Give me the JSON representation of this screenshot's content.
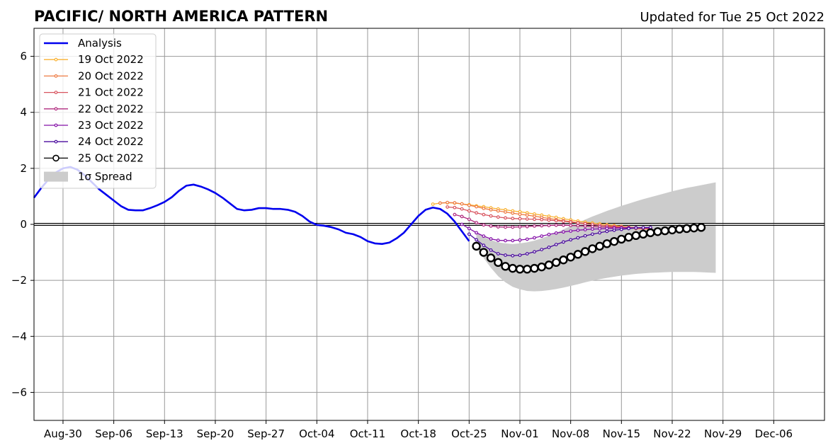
{
  "chart_data": {
    "type": "line",
    "title": "PACIFIC/ NORTH AMERICA PATTERN",
    "subtitle": "Updated for Tue 25 Oct 2022",
    "x_ticks": [
      "Aug-30",
      "Sep-06",
      "Sep-13",
      "Sep-20",
      "Sep-27",
      "Oct-04",
      "Oct-11",
      "Oct-18",
      "Oct-25",
      "Nov-01",
      "Nov-08",
      "Nov-15",
      "Nov-22",
      "Nov-29",
      "Dec-06"
    ],
    "y_ticks": [
      "−6",
      "−4",
      "−2",
      "0",
      "2",
      "4",
      "6"
    ],
    "x_range": [
      "2022-08-26",
      "2022-12-13"
    ],
    "ylim": [
      -7,
      7
    ],
    "grid": true,
    "legend_position": "top-left",
    "analysis": {
      "name": "Analysis",
      "color": "#0000ee",
      "x": [
        "2022-08-26",
        "2022-08-27",
        "2022-08-28",
        "2022-08-29",
        "2022-08-30",
        "2022-08-31",
        "2022-09-01",
        "2022-09-02",
        "2022-09-03",
        "2022-09-04",
        "2022-09-05",
        "2022-09-06",
        "2022-09-07",
        "2022-09-08",
        "2022-09-09",
        "2022-09-10",
        "2022-09-11",
        "2022-09-12",
        "2022-09-13",
        "2022-09-14",
        "2022-09-15",
        "2022-09-16",
        "2022-09-17",
        "2022-09-18",
        "2022-09-19",
        "2022-09-20",
        "2022-09-21",
        "2022-09-22",
        "2022-09-23",
        "2022-09-24",
        "2022-09-25",
        "2022-09-26",
        "2022-09-27",
        "2022-09-28",
        "2022-09-29",
        "2022-09-30",
        "2022-10-01",
        "2022-10-02",
        "2022-10-03",
        "2022-10-04",
        "2022-10-05",
        "2022-10-06",
        "2022-10-07",
        "2022-10-08",
        "2022-10-09",
        "2022-10-10",
        "2022-10-11",
        "2022-10-12",
        "2022-10-13",
        "2022-10-14",
        "2022-10-15",
        "2022-10-16",
        "2022-10-17",
        "2022-10-18",
        "2022-10-19",
        "2022-10-20",
        "2022-10-21",
        "2022-10-22",
        "2022-10-23",
        "2022-10-24",
        "2022-10-25"
      ],
      "y": [
        0.95,
        1.3,
        1.6,
        1.85,
        2.0,
        2.05,
        1.95,
        1.75,
        1.5,
        1.25,
        1.05,
        0.85,
        0.65,
        0.52,
        0.5,
        0.5,
        0.58,
        0.68,
        0.8,
        0.97,
        1.2,
        1.38,
        1.42,
        1.35,
        1.25,
        1.12,
        0.95,
        0.75,
        0.55,
        0.5,
        0.52,
        0.58,
        0.58,
        0.55,
        0.55,
        0.52,
        0.45,
        0.3,
        0.1,
        -0.02,
        -0.05,
        -0.1,
        -0.18,
        -0.3,
        -0.35,
        -0.45,
        -0.6,
        -0.68,
        -0.7,
        -0.65,
        -0.5,
        -0.3,
        0.0,
        0.3,
        0.52,
        0.6,
        0.55,
        0.38,
        0.1,
        -0.25,
        -0.6
      ]
    },
    "forecasts": [
      {
        "name": "19 Oct 2022",
        "color": "#f9b233",
        "x0": "2022-10-20",
        "y": [
          0.72,
          0.76,
          0.77,
          0.76,
          0.73,
          0.7,
          0.66,
          0.63,
          0.59,
          0.55,
          0.52,
          0.48,
          0.45,
          0.41,
          0.37,
          0.33,
          0.29,
          0.25,
          0.2,
          0.16,
          0.12,
          0.08,
          0.05,
          0.02,
          -0.01,
          -0.04,
          -0.07,
          -0.1,
          -0.12,
          -0.14,
          -0.15
        ]
      },
      {
        "name": "20 Oct 2022",
        "color": "#ee7b43",
        "x0": "2022-10-21",
        "y": [
          0.76,
          0.78,
          0.77,
          0.73,
          0.68,
          0.63,
          0.57,
          0.52,
          0.48,
          0.44,
          0.4,
          0.36,
          0.33,
          0.29,
          0.25,
          0.21,
          0.17,
          0.13,
          0.1,
          0.06,
          0.03,
          0.0,
          -0.03,
          -0.06,
          -0.09,
          -0.11,
          -0.13,
          -0.15,
          -0.16,
          -0.17
        ]
      },
      {
        "name": "21 Oct 2022",
        "color": "#d8535e",
        "x0": "2022-10-22",
        "y": [
          0.62,
          0.6,
          0.55,
          0.48,
          0.41,
          0.35,
          0.3,
          0.26,
          0.23,
          0.21,
          0.2,
          0.19,
          0.18,
          0.17,
          0.15,
          0.13,
          0.11,
          0.08,
          0.05,
          0.02,
          0.0,
          -0.03,
          -0.05,
          -0.07,
          -0.09,
          -0.11,
          -0.12,
          -0.13,
          -0.14
        ]
      },
      {
        "name": "22 Oct 2022",
        "color": "#b12b7f",
        "x0": "2022-10-23",
        "y": [
          0.35,
          0.28,
          0.18,
          0.06,
          -0.02,
          -0.06,
          -0.09,
          -0.1,
          -0.1,
          -0.09,
          -0.08,
          -0.06,
          -0.05,
          -0.04,
          -0.03,
          -0.03,
          -0.04,
          -0.05,
          -0.06,
          -0.08,
          -0.09,
          -0.1,
          -0.11,
          -0.12,
          -0.12,
          -0.13,
          -0.13,
          -0.14
        ]
      },
      {
        "name": "23 Oct 2022",
        "color": "#8512a8",
        "x0": "2022-10-24",
        "y": [
          0.0,
          -0.15,
          -0.3,
          -0.42,
          -0.52,
          -0.57,
          -0.58,
          -0.58,
          -0.56,
          -0.53,
          -0.48,
          -0.42,
          -0.36,
          -0.31,
          -0.27,
          -0.24,
          -0.21,
          -0.19,
          -0.17,
          -0.16,
          -0.15,
          -0.14,
          -0.13,
          -0.13,
          -0.12,
          -0.12,
          -0.12
        ]
      },
      {
        "name": "24 Oct 2022",
        "color": "#4a0b9e",
        "x0": "2022-10-25",
        "y": [
          -0.35,
          -0.55,
          -0.75,
          -0.92,
          -1.05,
          -1.1,
          -1.12,
          -1.1,
          -1.05,
          -0.98,
          -0.9,
          -0.82,
          -0.72,
          -0.63,
          -0.55,
          -0.48,
          -0.41,
          -0.35,
          -0.3,
          -0.25,
          -0.21,
          -0.18,
          -0.15,
          -0.13,
          -0.12,
          -0.11
        ]
      },
      {
        "name": "25 Oct 2022",
        "color": "#000000",
        "x0": "2022-10-26",
        "markers": "open-circle",
        "y": [
          -0.78,
          -1.0,
          -1.2,
          -1.36,
          -1.5,
          -1.57,
          -1.6,
          -1.6,
          -1.57,
          -1.52,
          -1.45,
          -1.36,
          -1.27,
          -1.17,
          -1.07,
          -0.97,
          -0.87,
          -0.78,
          -0.69,
          -0.61,
          -0.53,
          -0.46,
          -0.4,
          -0.35,
          -0.3,
          -0.26,
          -0.23,
          -0.2,
          -0.17,
          -0.15,
          -0.13,
          -0.11
        ]
      }
    ],
    "spread": {
      "name": "1σ Spread",
      "color": "#cccccc",
      "x0": "2022-10-26",
      "upper": [
        -0.3,
        -0.45,
        -0.56,
        -0.64,
        -0.68,
        -0.7,
        -0.68,
        -0.64,
        -0.58,
        -0.5,
        -0.4,
        -0.3,
        -0.18,
        -0.06,
        0.06,
        0.17,
        0.28,
        0.38,
        0.48,
        0.57,
        0.66,
        0.74,
        0.82,
        0.9,
        0.97,
        1.04,
        1.11,
        1.18,
        1.24,
        1.3,
        1.35,
        1.4,
        1.45,
        1.5
      ],
      "lower": [
        -0.85,
        -1.2,
        -1.55,
        -1.85,
        -2.07,
        -2.23,
        -2.32,
        -2.38,
        -2.39,
        -2.38,
        -2.35,
        -2.31,
        -2.26,
        -2.2,
        -2.14,
        -2.07,
        -2.01,
        -1.96,
        -1.91,
        -1.87,
        -1.83,
        -1.8,
        -1.77,
        -1.75,
        -1.73,
        -1.72,
        -1.71,
        -1.7,
        -1.7,
        -1.7,
        -1.7,
        -1.71,
        -1.72,
        -1.73
      ]
    },
    "legend": [
      "Analysis",
      "19 Oct 2022",
      "20 Oct 2022",
      "21 Oct 2022",
      "22 Oct 2022",
      "23 Oct 2022",
      "24 Oct 2022",
      "25 Oct 2022",
      "1σ Spread"
    ]
  }
}
